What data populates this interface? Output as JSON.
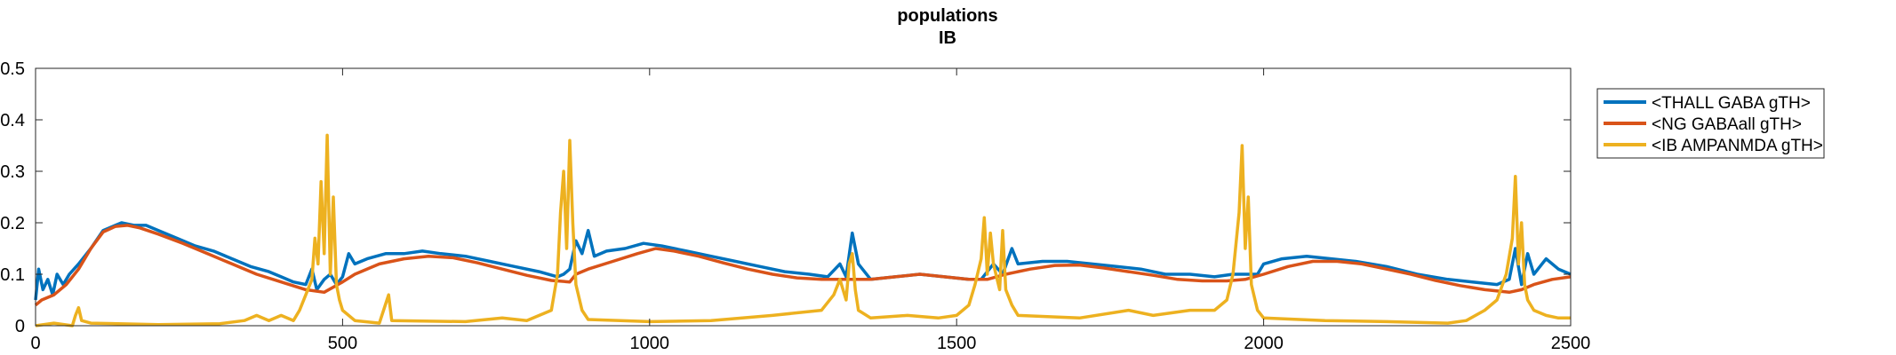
{
  "chart_data": {
    "type": "line",
    "title": [
      "populations",
      "IB"
    ],
    "xlabel": "",
    "ylabel": "",
    "xlim": [
      0,
      2500
    ],
    "ylim": [
      0,
      0.5
    ],
    "x_ticks": [
      0,
      500,
      1000,
      1500,
      2000,
      2500
    ],
    "x_tick_labels": [
      "0",
      "500",
      "1000",
      "1500",
      "2000",
      "2500"
    ],
    "y_ticks": [
      0,
      0.1,
      0.2,
      0.3,
      0.4,
      0.5
    ],
    "y_tick_labels": [
      "0",
      "0.1",
      "0.2",
      "0.3",
      "0.4",
      "0.5"
    ],
    "grid": false,
    "legend_position": "top-right",
    "series": [
      {
        "name": "<THALL GABA gTH>",
        "color": "#0072BD",
        "points": [
          [
            0,
            0.05
          ],
          [
            5,
            0.11
          ],
          [
            12,
            0.07
          ],
          [
            20,
            0.09
          ],
          [
            28,
            0.06
          ],
          [
            35,
            0.1
          ],
          [
            45,
            0.08
          ],
          [
            55,
            0.1
          ],
          [
            70,
            0.12
          ],
          [
            90,
            0.15
          ],
          [
            110,
            0.185
          ],
          [
            130,
            0.195
          ],
          [
            140,
            0.2
          ],
          [
            160,
            0.195
          ],
          [
            180,
            0.195
          ],
          [
            200,
            0.185
          ],
          [
            230,
            0.17
          ],
          [
            260,
            0.155
          ],
          [
            290,
            0.145
          ],
          [
            320,
            0.13
          ],
          [
            350,
            0.115
          ],
          [
            380,
            0.105
          ],
          [
            400,
            0.095
          ],
          [
            420,
            0.085
          ],
          [
            440,
            0.08
          ],
          [
            450,
            0.11
          ],
          [
            458,
            0.07
          ],
          [
            470,
            0.09
          ],
          [
            480,
            0.1
          ],
          [
            490,
            0.08
          ],
          [
            500,
            0.095
          ],
          [
            510,
            0.14
          ],
          [
            520,
            0.12
          ],
          [
            540,
            0.13
          ],
          [
            570,
            0.14
          ],
          [
            600,
            0.14
          ],
          [
            630,
            0.145
          ],
          [
            660,
            0.14
          ],
          [
            700,
            0.135
          ],
          [
            740,
            0.125
          ],
          [
            780,
            0.115
          ],
          [
            820,
            0.105
          ],
          [
            850,
            0.095
          ],
          [
            860,
            0.1
          ],
          [
            870,
            0.11
          ],
          [
            880,
            0.165
          ],
          [
            890,
            0.14
          ],
          [
            900,
            0.185
          ],
          [
            910,
            0.135
          ],
          [
            930,
            0.145
          ],
          [
            960,
            0.15
          ],
          [
            990,
            0.16
          ],
          [
            1020,
            0.155
          ],
          [
            1060,
            0.145
          ],
          [
            1100,
            0.135
          ],
          [
            1140,
            0.125
          ],
          [
            1180,
            0.115
          ],
          [
            1220,
            0.105
          ],
          [
            1260,
            0.1
          ],
          [
            1290,
            0.095
          ],
          [
            1310,
            0.12
          ],
          [
            1320,
            0.095
          ],
          [
            1330,
            0.18
          ],
          [
            1340,
            0.12
          ],
          [
            1360,
            0.09
          ],
          [
            1400,
            0.095
          ],
          [
            1440,
            0.1
          ],
          [
            1480,
            0.095
          ],
          [
            1520,
            0.09
          ],
          [
            1540,
            0.09
          ],
          [
            1560,
            0.12
          ],
          [
            1575,
            0.1
          ],
          [
            1590,
            0.15
          ],
          [
            1600,
            0.12
          ],
          [
            1640,
            0.125
          ],
          [
            1680,
            0.125
          ],
          [
            1720,
            0.12
          ],
          [
            1760,
            0.115
          ],
          [
            1800,
            0.11
          ],
          [
            1840,
            0.1
          ],
          [
            1880,
            0.1
          ],
          [
            1920,
            0.095
          ],
          [
            1950,
            0.1
          ],
          [
            1970,
            0.1
          ],
          [
            1990,
            0.1
          ],
          [
            2000,
            0.12
          ],
          [
            2030,
            0.13
          ],
          [
            2070,
            0.135
          ],
          [
            2110,
            0.13
          ],
          [
            2150,
            0.125
          ],
          [
            2200,
            0.115
          ],
          [
            2250,
            0.1
          ],
          [
            2300,
            0.09
          ],
          [
            2340,
            0.085
          ],
          [
            2380,
            0.08
          ],
          [
            2400,
            0.09
          ],
          [
            2410,
            0.15
          ],
          [
            2420,
            0.08
          ],
          [
            2430,
            0.14
          ],
          [
            2440,
            0.1
          ],
          [
            2460,
            0.13
          ],
          [
            2480,
            0.11
          ],
          [
            2500,
            0.1
          ]
        ]
      },
      {
        "name": "<NG GABAall gTH>",
        "color": "#D95319",
        "points": [
          [
            0,
            0.04
          ],
          [
            10,
            0.05
          ],
          [
            30,
            0.06
          ],
          [
            50,
            0.08
          ],
          [
            70,
            0.11
          ],
          [
            90,
            0.15
          ],
          [
            110,
            0.182
          ],
          [
            130,
            0.193
          ],
          [
            150,
            0.195
          ],
          [
            170,
            0.19
          ],
          [
            200,
            0.178
          ],
          [
            240,
            0.16
          ],
          [
            280,
            0.14
          ],
          [
            320,
            0.12
          ],
          [
            360,
            0.1
          ],
          [
            400,
            0.085
          ],
          [
            440,
            0.07
          ],
          [
            470,
            0.065
          ],
          [
            500,
            0.085
          ],
          [
            520,
            0.1
          ],
          [
            560,
            0.12
          ],
          [
            600,
            0.13
          ],
          [
            640,
            0.135
          ],
          [
            680,
            0.132
          ],
          [
            720,
            0.122
          ],
          [
            760,
            0.11
          ],
          [
            800,
            0.098
          ],
          [
            840,
            0.088
          ],
          [
            870,
            0.085
          ],
          [
            880,
            0.1
          ],
          [
            900,
            0.11
          ],
          [
            940,
            0.125
          ],
          [
            980,
            0.14
          ],
          [
            1010,
            0.15
          ],
          [
            1040,
            0.145
          ],
          [
            1080,
            0.135
          ],
          [
            1120,
            0.122
          ],
          [
            1160,
            0.11
          ],
          [
            1200,
            0.1
          ],
          [
            1240,
            0.093
          ],
          [
            1280,
            0.09
          ],
          [
            1320,
            0.09
          ],
          [
            1360,
            0.09
          ],
          [
            1400,
            0.095
          ],
          [
            1440,
            0.1
          ],
          [
            1480,
            0.095
          ],
          [
            1520,
            0.09
          ],
          [
            1550,
            0.09
          ],
          [
            1580,
            0.1
          ],
          [
            1620,
            0.11
          ],
          [
            1660,
            0.117
          ],
          [
            1700,
            0.118
          ],
          [
            1740,
            0.112
          ],
          [
            1780,
            0.105
          ],
          [
            1820,
            0.098
          ],
          [
            1860,
            0.09
          ],
          [
            1900,
            0.087
          ],
          [
            1940,
            0.087
          ],
          [
            1970,
            0.09
          ],
          [
            2000,
            0.1
          ],
          [
            2040,
            0.115
          ],
          [
            2080,
            0.125
          ],
          [
            2120,
            0.125
          ],
          [
            2160,
            0.12
          ],
          [
            2200,
            0.11
          ],
          [
            2240,
            0.1
          ],
          [
            2280,
            0.088
          ],
          [
            2320,
            0.078
          ],
          [
            2360,
            0.07
          ],
          [
            2400,
            0.065
          ],
          [
            2420,
            0.07
          ],
          [
            2440,
            0.08
          ],
          [
            2470,
            0.09
          ],
          [
            2500,
            0.095
          ]
        ]
      },
      {
        "name": "<IB AMPANMDA gTH>",
        "color": "#EDB120",
        "points": [
          [
            0,
            0.0
          ],
          [
            30,
            0.005
          ],
          [
            60,
            0.0
          ],
          [
            65,
            0.02
          ],
          [
            70,
            0.035
          ],
          [
            75,
            0.01
          ],
          [
            90,
            0.005
          ],
          [
            200,
            0.002
          ],
          [
            300,
            0.004
          ],
          [
            340,
            0.01
          ],
          [
            360,
            0.02
          ],
          [
            380,
            0.01
          ],
          [
            400,
            0.02
          ],
          [
            420,
            0.01
          ],
          [
            430,
            0.03
          ],
          [
            440,
            0.06
          ],
          [
            450,
            0.09
          ],
          [
            455,
            0.17
          ],
          [
            460,
            0.12
          ],
          [
            465,
            0.28
          ],
          [
            470,
            0.14
          ],
          [
            475,
            0.37
          ],
          [
            480,
            0.1
          ],
          [
            485,
            0.25
          ],
          [
            490,
            0.08
          ],
          [
            495,
            0.05
          ],
          [
            500,
            0.03
          ],
          [
            520,
            0.01
          ],
          [
            560,
            0.005
          ],
          [
            575,
            0.06
          ],
          [
            580,
            0.01
          ],
          [
            700,
            0.008
          ],
          [
            760,
            0.015
          ],
          [
            800,
            0.01
          ],
          [
            840,
            0.03
          ],
          [
            850,
            0.1
          ],
          [
            855,
            0.22
          ],
          [
            860,
            0.3
          ],
          [
            865,
            0.15
          ],
          [
            870,
            0.36
          ],
          [
            875,
            0.2
          ],
          [
            880,
            0.08
          ],
          [
            890,
            0.03
          ],
          [
            900,
            0.012
          ],
          [
            1000,
            0.008
          ],
          [
            1100,
            0.01
          ],
          [
            1200,
            0.02
          ],
          [
            1280,
            0.03
          ],
          [
            1300,
            0.06
          ],
          [
            1310,
            0.09
          ],
          [
            1320,
            0.05
          ],
          [
            1325,
            0.12
          ],
          [
            1330,
            0.14
          ],
          [
            1335,
            0.07
          ],
          [
            1340,
            0.03
          ],
          [
            1360,
            0.015
          ],
          [
            1420,
            0.02
          ],
          [
            1470,
            0.015
          ],
          [
            1500,
            0.02
          ],
          [
            1520,
            0.04
          ],
          [
            1530,
            0.08
          ],
          [
            1540,
            0.13
          ],
          [
            1545,
            0.21
          ],
          [
            1550,
            0.1
          ],
          [
            1555,
            0.18
          ],
          [
            1560,
            0.12
          ],
          [
            1570,
            0.07
          ],
          [
            1575,
            0.185
          ],
          [
            1580,
            0.07
          ],
          [
            1590,
            0.04
          ],
          [
            1600,
            0.02
          ],
          [
            1700,
            0.015
          ],
          [
            1780,
            0.03
          ],
          [
            1820,
            0.02
          ],
          [
            1880,
            0.03
          ],
          [
            1920,
            0.03
          ],
          [
            1940,
            0.05
          ],
          [
            1950,
            0.1
          ],
          [
            1960,
            0.22
          ],
          [
            1965,
            0.35
          ],
          [
            1970,
            0.15
          ],
          [
            1975,
            0.25
          ],
          [
            1980,
            0.08
          ],
          [
            1990,
            0.03
          ],
          [
            2000,
            0.015
          ],
          [
            2100,
            0.01
          ],
          [
            2200,
            0.008
          ],
          [
            2300,
            0.005
          ],
          [
            2330,
            0.01
          ],
          [
            2360,
            0.03
          ],
          [
            2380,
            0.05
          ],
          [
            2395,
            0.1
          ],
          [
            2405,
            0.17
          ],
          [
            2410,
            0.29
          ],
          [
            2415,
            0.12
          ],
          [
            2420,
            0.2
          ],
          [
            2425,
            0.08
          ],
          [
            2430,
            0.05
          ],
          [
            2440,
            0.03
          ],
          [
            2460,
            0.02
          ],
          [
            2480,
            0.015
          ],
          [
            2500,
            0.015
          ]
        ]
      }
    ]
  }
}
